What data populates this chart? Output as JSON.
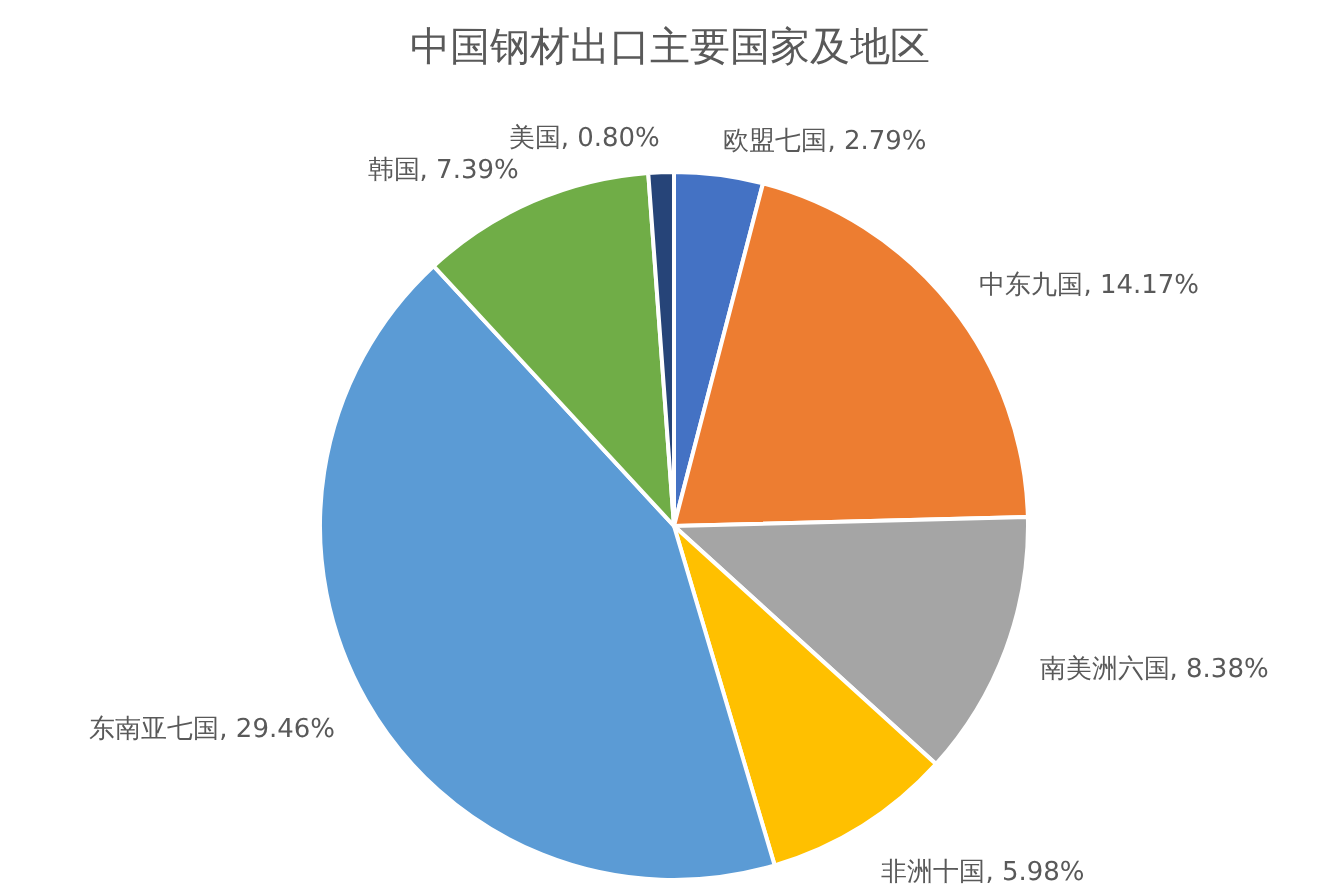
{
  "chart_data": {
    "type": "pie",
    "title": "中国钢材出口主要国家及地区",
    "categories": [
      "欧盟七国",
      "中东九国",
      "南美洲六国",
      "非洲十国",
      "东南亚七国",
      "韩国",
      "美国"
    ],
    "values": [
      2.79,
      14.17,
      8.38,
      5.98,
      29.46,
      7.39,
      0.8
    ],
    "value_labels": [
      "2.79%",
      "14.17%",
      "8.38%",
      "5.98%",
      "29.46%",
      "7.39%",
      "0.80%"
    ],
    "colors": [
      "#4472c4",
      "#ed7d31",
      "#a5a5a5",
      "#ffc000",
      "#5b9bd5",
      "#70ad47",
      "#264478"
    ]
  }
}
